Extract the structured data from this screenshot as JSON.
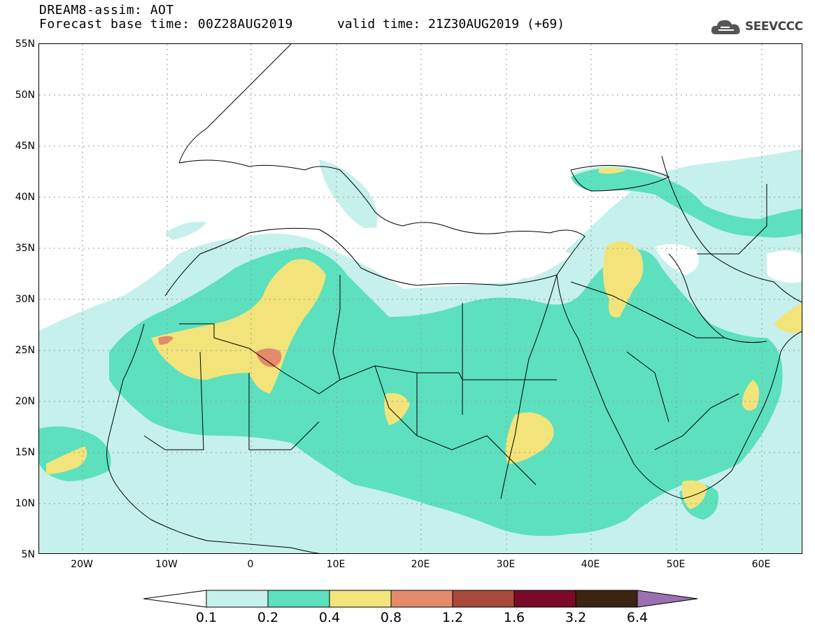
{
  "header": {
    "title_line1": "DREAM8-assim: AOT",
    "title_line2": "Forecast base time: 00Z28AUG2019",
    "valid_time": "valid time: 21Z30AUG2019 (+69)"
  },
  "logo": {
    "text": "SEEVCCC",
    "icon": "cloud-icon"
  },
  "axes": {
    "lat_labels": [
      "55N",
      "50N",
      "45N",
      "40N",
      "35N",
      "30N",
      "25N",
      "20N",
      "15N",
      "10N",
      "5N"
    ],
    "lon_labels": [
      "20W",
      "10W",
      "0",
      "10E",
      "20E",
      "30E",
      "40E",
      "50E",
      "60E"
    ],
    "lat_range": [
      5,
      55
    ],
    "lon_range": [
      -25,
      65
    ]
  },
  "legend": {
    "labels": [
      "0.1",
      "0.2",
      "0.4",
      "0.8",
      "1.2",
      "1.6",
      "3.2",
      "6.4"
    ],
    "colors": {
      "below": "#ffffff",
      "c1": "#c6f0eb",
      "c2": "#5ce0be",
      "c3": "#f2e47a",
      "c4": "#e48b6b",
      "c5": "#a9493d",
      "c6": "#7a0a28",
      "c7": "#3c2411",
      "above": "#9c70b0"
    }
  }
}
